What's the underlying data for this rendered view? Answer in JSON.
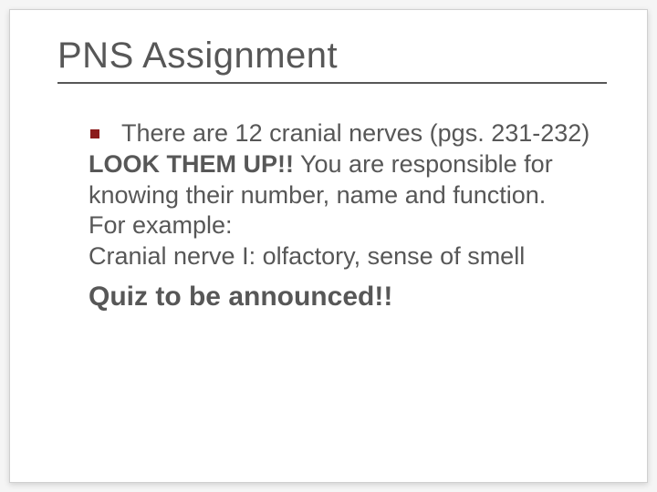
{
  "slide": {
    "title": "PNS Assignment",
    "bullet_color": "#8b1a1a",
    "text_color": "#575757",
    "title_fontsize": 40,
    "body_fontsize": 27,
    "announce_fontsize": 30,
    "background_color": "#ffffff",
    "page_background": "#f5f5f5",
    "rule_color": "#575757",
    "body": {
      "line1": "There are 12 cranial nerves (pgs. 231-232)",
      "look_bold": "LOOK THEM UP!!",
      "look_rest": " You are responsible for knowing their number, name and function.",
      "example": "For example:",
      "cranial": "Cranial nerve I: olfactory, sense of smell",
      "announce": "Quiz to be announced!!"
    }
  }
}
